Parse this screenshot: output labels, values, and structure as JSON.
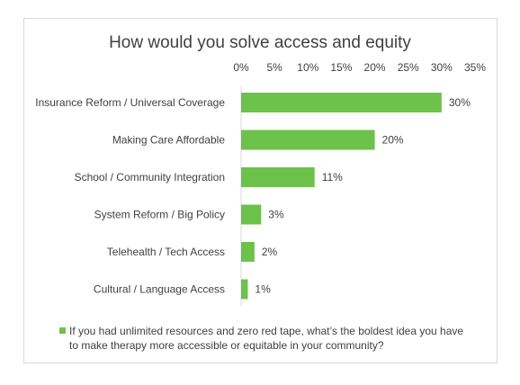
{
  "chart_data": {
    "type": "bar",
    "orientation": "horizontal",
    "title": "How would you solve access and equity",
    "categories": [
      "Insurance Reform / Universal Coverage",
      "Making Care Affordable",
      "School / Community Integration",
      "System Reform / Big Policy",
      "Telehealth / Tech Access",
      "Cultural / Language Access"
    ],
    "values": [
      30,
      20,
      11,
      3,
      2,
      1
    ],
    "value_labels": [
      "30%",
      "20%",
      "11%",
      "3%",
      "2%",
      "1%"
    ],
    "xlim": [
      0,
      35
    ],
    "x_ticks": [
      0,
      5,
      10,
      15,
      20,
      25,
      30,
      35
    ],
    "x_tick_labels": [
      "0%",
      "5%",
      "10%",
      "15%",
      "20%",
      "25%",
      "30%",
      "35%"
    ],
    "x_axis_position": "top",
    "grid": false,
    "legend_position": "bottom",
    "series": [
      {
        "name": "If you had unlimited resources and zero red tape, what’s the boldest idea you have to make therapy more accessible or equitable in your community?",
        "color": "#6cc24a"
      }
    ]
  }
}
